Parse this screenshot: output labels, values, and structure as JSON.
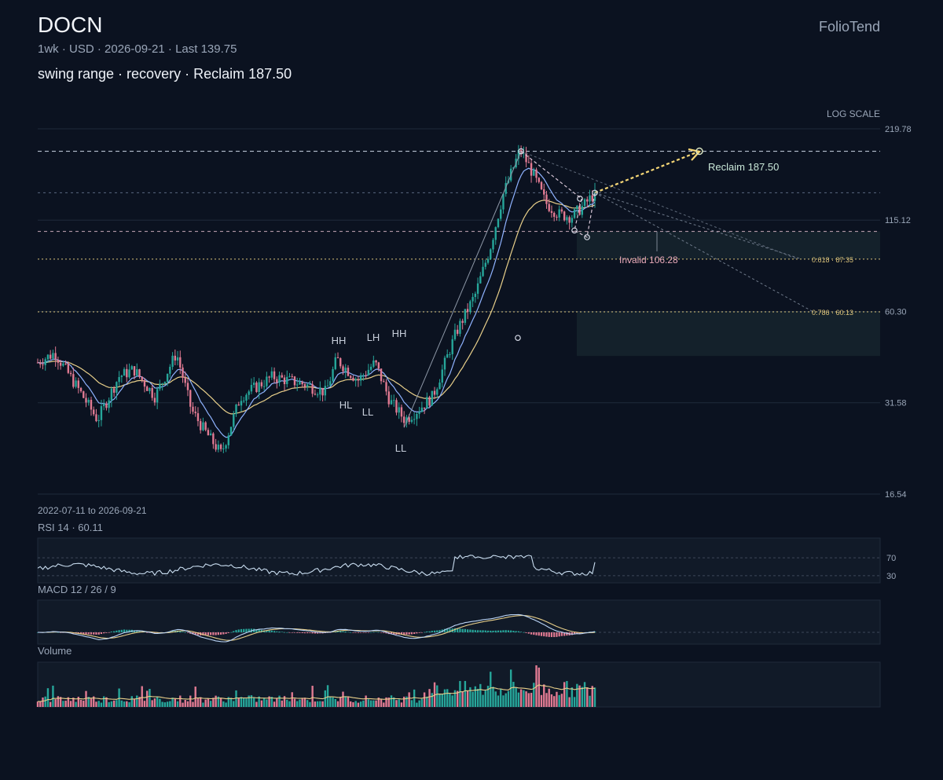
{
  "header": {
    "ticker": "DOCN",
    "meta": "1wk · USD · 2026-09-21 · Last 139.75",
    "headline": "swing range · recovery · Reclaim 187.50",
    "brand": "FolioTend"
  },
  "chart_data": {
    "type": "candlestick",
    "interval": "1wk",
    "currency": "USD",
    "last": 139.75,
    "scale_label": "LOG SCALE",
    "y_ticks": [
      219.78,
      115.12,
      60.3,
      31.58,
      16.54
    ],
    "ylim": [
      16.54,
      219.78
    ],
    "date_range_label": "2022-07-11 to 2026-09-21",
    "levels": {
      "swing_high": 187.5,
      "recent_high": 139.75,
      "reclaim": 187.5,
      "invalid": 106.28,
      "fib_618": 87.35,
      "fib_786": 60.13
    },
    "labels": {
      "reclaim": "Reclaim 187.50",
      "invalid": "Invalid 106.28",
      "fib_618": "0.618 · 87.35",
      "fib_786": "0.786 · 60.13"
    },
    "pivots": [
      {
        "label": "HH",
        "price": 47.5
      },
      {
        "label": "LH",
        "price": 49.0
      },
      {
        "label": "HH",
        "price": 50.0
      },
      {
        "label": "HL",
        "price": 35.5
      },
      {
        "label": "LL",
        "price": 33.0
      },
      {
        "label": "LL",
        "price": 26.0
      }
    ],
    "rsi": {
      "label": "RSI 14 · 60.11",
      "value": 60.11,
      "levels": [
        70,
        30
      ]
    },
    "macd": {
      "label": "MACD 12 / 26 / 9"
    },
    "volume": {
      "label": "Volume"
    }
  },
  "colors": {
    "background": "#0b1220",
    "up": "#26a69a",
    "down": "#e07a92",
    "ema_fast": "#8fb3ff",
    "ema_slow": "#e8cf8a",
    "target": "#f6d776",
    "fib": "#d9c27a"
  }
}
